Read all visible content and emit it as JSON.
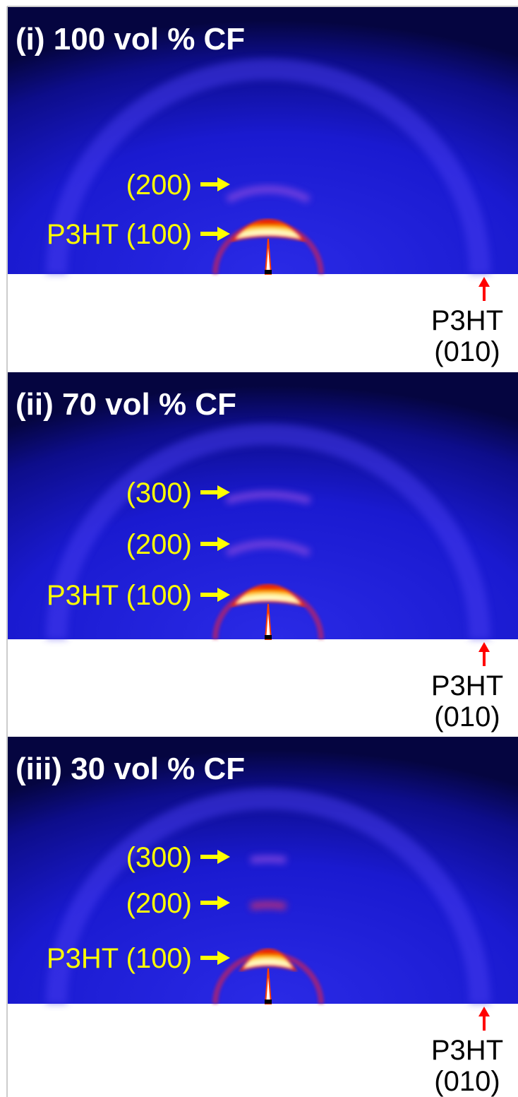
{
  "panels": [
    {
      "title": "(i) 100 vol % CF",
      "peaks": [
        "(200)",
        "P3HT (100)"
      ],
      "bottom_label": [
        "P3HT",
        "(010)"
      ]
    },
    {
      "title": "(ii) 70 vol % CF",
      "peaks": [
        "(300)",
        "(200)",
        "P3HT (100)"
      ],
      "bottom_label": [
        "P3HT",
        "(010)"
      ]
    },
    {
      "title": "(iii) 30 vol % CF",
      "peaks": [
        "(300)",
        "(200)",
        "P3HT (100)"
      ],
      "bottom_label": [
        "P3HT",
        "(010)"
      ]
    }
  ]
}
